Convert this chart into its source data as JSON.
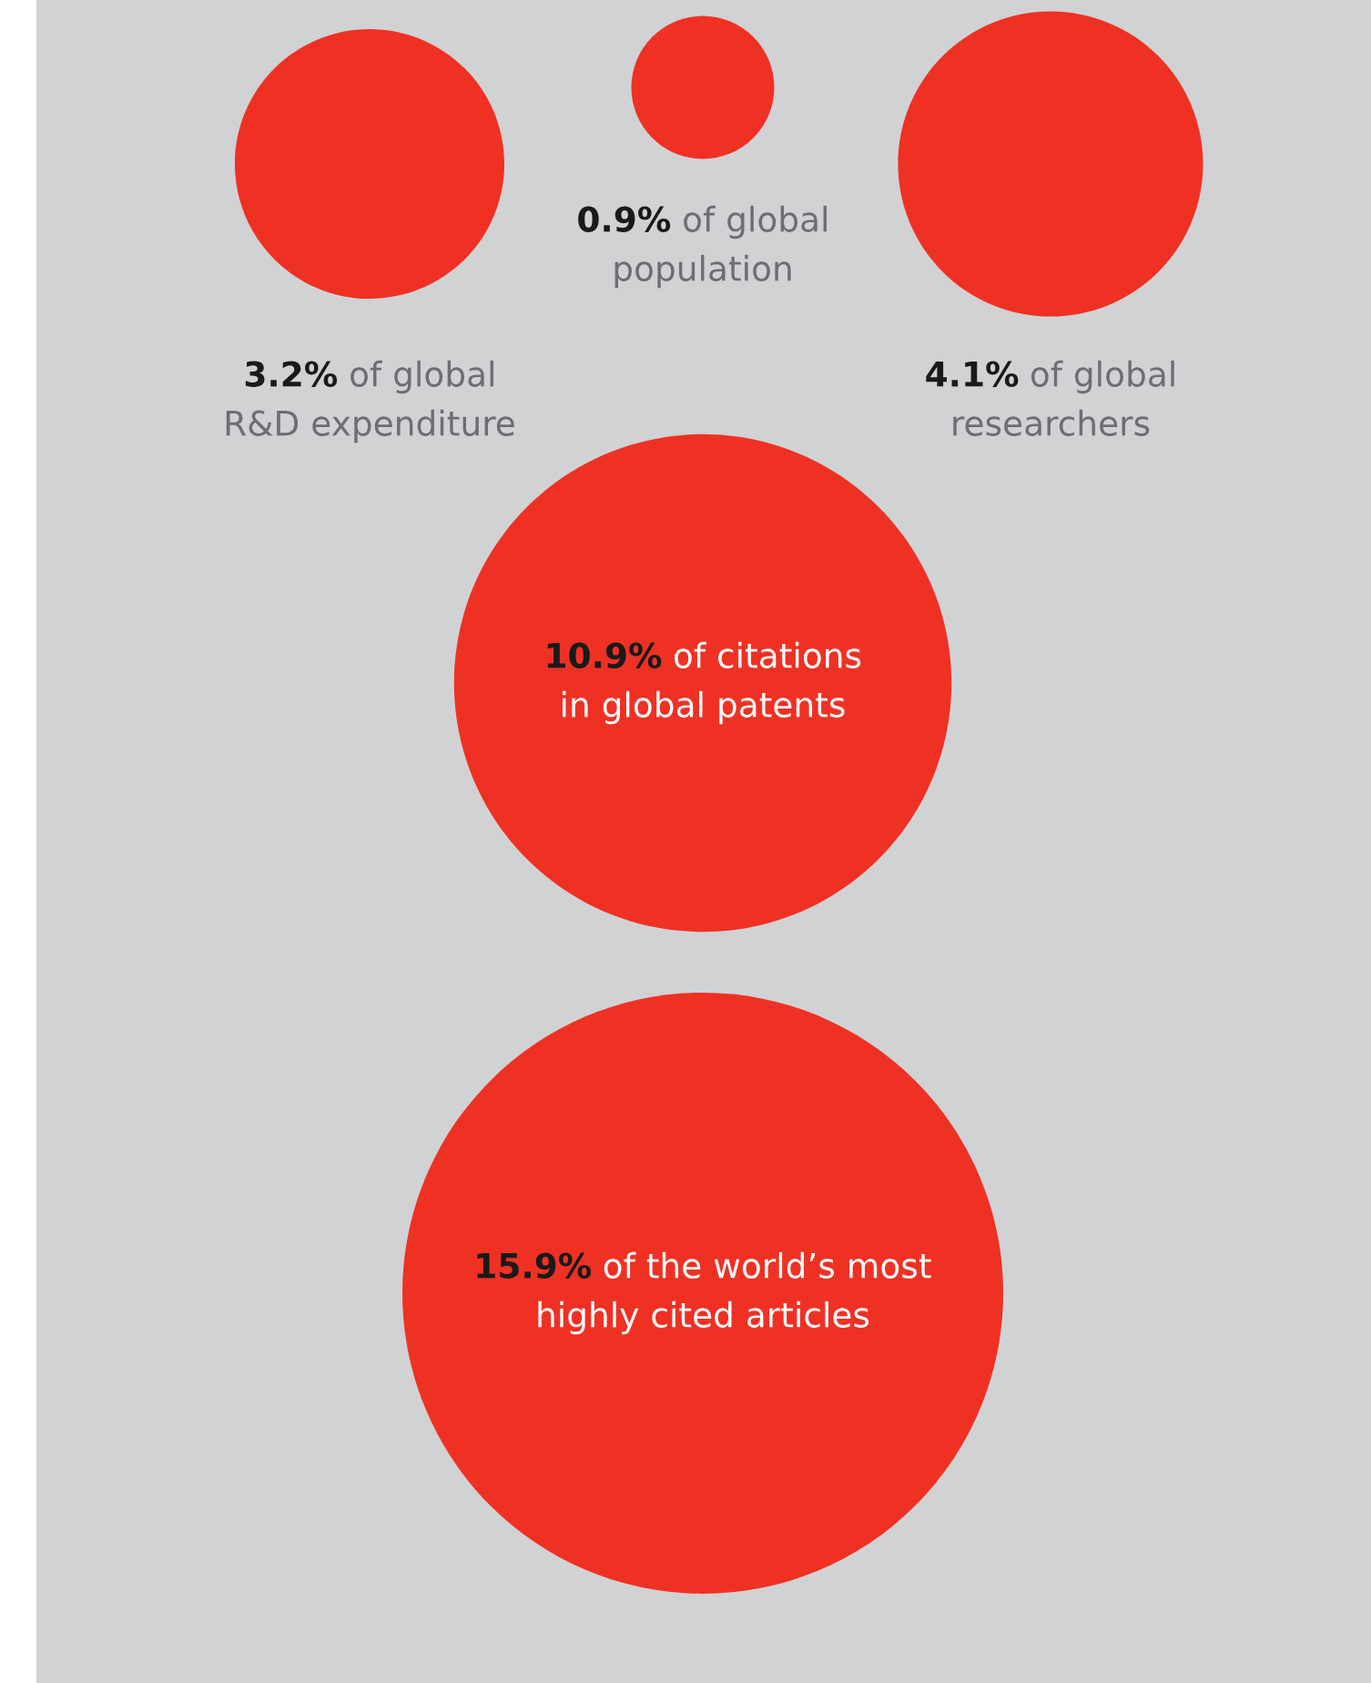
{
  "chart_data": {
    "type": "other",
    "categories": [
      "of global\nR&D expenditure",
      "of global\npopulation",
      "of global\nresearchers",
      "of citations\nin global patents",
      "of the world’s most\nhighly cited articles"
    ],
    "values": [
      3.2,
      0.9,
      4.1,
      10.9,
      15.9
    ],
    "value_labels": [
      "3.2%",
      "0.9%",
      "4.1%",
      "10.9%",
      "15.9%"
    ],
    "color": "#ef3124"
  }
}
